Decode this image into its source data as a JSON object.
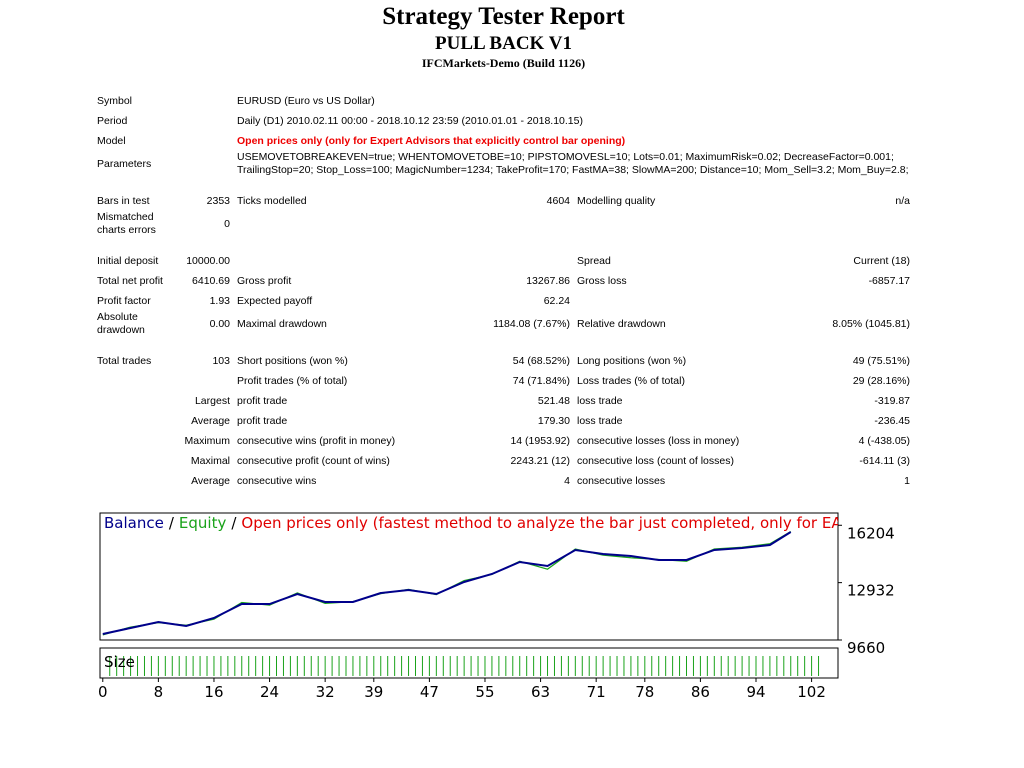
{
  "header": {
    "title": "Strategy Tester Report",
    "expert": "PULL BACK V1",
    "server": "IFCMarkets-Demo (Build 1126)"
  },
  "info": [
    {
      "label": "Symbol",
      "value": "EURUSD (Euro vs US Dollar)"
    },
    {
      "label": "Period",
      "value": "Daily (D1) 2010.02.11 00:00 - 2018.10.12 23:59 (2010.01.01 - 2018.10.15)"
    },
    {
      "label": "Model",
      "value": "Open prices only (only for Expert Advisors that explicitly control bar opening)",
      "highlight": true
    },
    {
      "label": "Parameters",
      "value": "USEMOVETOBREAKEVEN=true; WHENTOMOVETOBE=10; PIPSTOMOVESL=10; Lots=0.01; MaximumRisk=0.02; DecreaseFactor=0.001; TrailingStop=20; Stop_Loss=100; MagicNumber=1234; TakeProfit=170; FastMA=38; SlowMA=200; Distance=10; Mom_Sell=3.2; Mom_Buy=2.8;"
    }
  ],
  "sections": [
    [
      [
        "Bars in test",
        "2353",
        "Ticks modelled",
        "4604",
        "Modelling quality",
        "n/a"
      ],
      [
        "Mismatched charts errors",
        "0",
        null,
        null,
        null,
        null
      ]
    ],
    [
      [
        "Initial deposit",
        "10000.00",
        null,
        null,
        "Spread",
        "Current (18)"
      ],
      [
        "Total net profit",
        "6410.69",
        "Gross profit",
        "13267.86",
        "Gross loss",
        "-6857.17"
      ],
      [
        "Profit factor",
        "1.93",
        "Expected payoff",
        "62.24",
        null,
        null
      ],
      [
        "Absolute drawdown",
        "0.00",
        "Maximal drawdown",
        "1184.08 (7.67%)",
        "Relative drawdown",
        "8.05% (1045.81)"
      ]
    ],
    [
      [
        "Total trades",
        "103",
        "Short positions (won %)",
        "54 (68.52%)",
        "Long positions (won %)",
        "49 (75.51%)"
      ],
      [
        null,
        null,
        "Profit trades (% of total)",
        "74 (71.84%)",
        "Loss trades (% of total)",
        "29 (28.16%)"
      ],
      [
        null,
        "Largest",
        "profit trade",
        "521.48",
        "loss trade",
        "-319.87"
      ],
      [
        null,
        "Average",
        "profit trade",
        "179.30",
        "loss trade",
        "-236.45"
      ],
      [
        null,
        "Maximum",
        "consecutive wins (profit in money)",
        "14 (1953.92)",
        "consecutive losses (loss in money)",
        "4 (-438.05)"
      ],
      [
        null,
        "Maximal",
        "consecutive profit (count of wins)",
        "2243.21 (12)",
        "consecutive loss (count of losses)",
        "-614.11 (3)"
      ],
      [
        null,
        "Average",
        "consecutive wins",
        "4",
        "consecutive losses",
        "1"
      ]
    ]
  ],
  "chart_data": {
    "type": "line",
    "legend_separator": "/",
    "model_note": "Open prices only (fastest method to analyze the bar just completed, only for EAs that",
    "model_note_color": "#e00000",
    "x": [
      0,
      4,
      8,
      12,
      16,
      20,
      24,
      28,
      32,
      36,
      40,
      44,
      48,
      52,
      56,
      60,
      64,
      68,
      72,
      76,
      80,
      84,
      88,
      92,
      96,
      99
    ],
    "series": [
      {
        "name": "Balance",
        "color": "#00008b",
        "values": [
          10000,
          10344,
          10687,
          10459,
          10915,
          11713,
          11713,
          12284,
          11827,
          11827,
          12341,
          12512,
          12284,
          12968,
          13425,
          14109,
          13881,
          14794,
          14566,
          14452,
          14223,
          14223,
          14794,
          14908,
          15079,
          15820
        ]
      },
      {
        "name": "Equity",
        "color": "#1aa31a",
        "values": [
          9950,
          10400,
          10650,
          10500,
          10850,
          11800,
          11650,
          12350,
          11750,
          11850,
          12300,
          12550,
          12250,
          13050,
          13400,
          14150,
          13700,
          14850,
          14500,
          14350,
          14250,
          14150,
          14850,
          14950,
          15150,
          15850
        ]
      }
    ],
    "xlim": [
      -0.4,
      105.8
    ],
    "xticks": [
      0,
      8,
      16,
      24,
      32,
      39,
      47,
      55,
      63,
      71,
      78,
      86,
      94,
      102
    ],
    "ylim": [
      9660,
      16904
    ],
    "yticks": [
      9660,
      12932,
      16204
    ],
    "size_panel": {
      "label": "Size",
      "color": "#1aa31a",
      "ylim": [
        0,
        0.013
      ],
      "values": [
        0.01,
        0.01,
        0.01,
        0.01,
        0.01,
        0.01,
        0.01,
        0.01,
        0.01,
        0.01,
        0.01,
        0.01,
        0.01,
        0.01,
        0.01,
        0.01,
        0.01,
        0.01,
        0.01,
        0.01,
        0.01,
        0.01,
        0.01,
        0.01,
        0.01,
        0.01,
        0.01,
        0.01,
        0.01,
        0.01,
        0.01,
        0.01,
        0.01,
        0.01,
        0.01,
        0.01,
        0.01,
        0.01,
        0.01,
        0.01,
        0.01,
        0.01,
        0.01,
        0.01,
        0.01,
        0.01,
        0.01,
        0.01,
        0.01,
        0.01,
        0.01,
        0.01,
        0.01,
        0.01,
        0.01,
        0.01,
        0.01,
        0.01,
        0.01,
        0.01,
        0.01,
        0.01,
        0.01,
        0.01,
        0.01,
        0.01,
        0.01,
        0.01,
        0.01,
        0.01,
        0.01,
        0.01,
        0.01,
        0.01,
        0.01,
        0.01,
        0.01,
        0.01,
        0.01,
        0.01,
        0.01,
        0.01,
        0.01,
        0.01,
        0.01,
        0.01,
        0.01,
        0.01,
        0.01,
        0.01,
        0.01,
        0.01,
        0.01,
        0.01,
        0.01,
        0.01,
        0.01,
        0.01,
        0.01,
        0.01,
        0.01,
        0.01,
        0.01
      ]
    }
  }
}
